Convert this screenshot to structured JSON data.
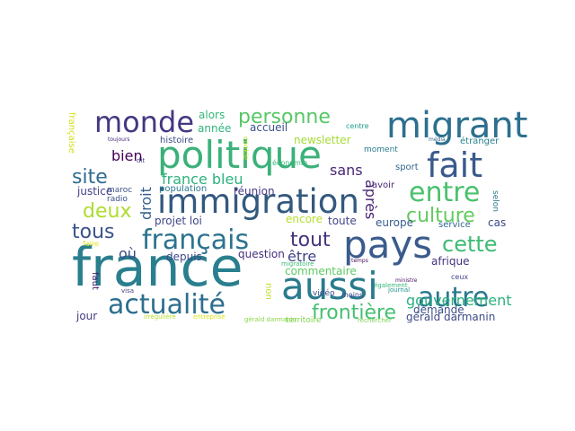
{
  "wordcloud": {
    "words": [
      {
        "text": "france",
        "color": "#2a7f8e"
      },
      {
        "text": "immigration",
        "color": "#33597f"
      },
      {
        "text": "politique",
        "color": "#3bb17a"
      },
      {
        "text": "migrant",
        "color": "#2d6f8e"
      },
      {
        "text": "pays",
        "color": "#3a5b8c"
      },
      {
        "text": "aussi",
        "color": "#2a7b8e"
      },
      {
        "text": "monde",
        "color": "#453781"
      },
      {
        "text": "fait",
        "color": "#3a5a8c"
      },
      {
        "text": "actualité",
        "color": "#2d6e8e"
      },
      {
        "text": "français",
        "color": "#2c738e"
      },
      {
        "text": "entre",
        "color": "#4ac16d"
      },
      {
        "text": "autre",
        "color": "#2a788e"
      },
      {
        "text": "personne",
        "color": "#57c766"
      },
      {
        "text": "cette",
        "color": "#3dbc74"
      },
      {
        "text": "tout",
        "color": "#46327e"
      },
      {
        "text": "culture",
        "color": "#62cb5f"
      },
      {
        "text": "frontière",
        "color": "#45bf70"
      },
      {
        "text": "site",
        "color": "#2f6c8e"
      },
      {
        "text": "deux",
        "color": "#addc30"
      },
      {
        "text": "tous",
        "color": "#3b528b"
      },
      {
        "text": "gouvernement",
        "color": "#2ab07f"
      },
      {
        "text": "france bleu",
        "color": "#2db27d"
      },
      {
        "text": "bien",
        "color": "#440154"
      },
      {
        "text": "droit",
        "color": "#35608d"
      },
      {
        "text": "sans",
        "color": "#482576"
      },
      {
        "text": "après",
        "color": "#482475"
      },
      {
        "text": "être",
        "color": "#424086"
      },
      {
        "text": "où",
        "color": "#3e4989"
      },
      {
        "text": "europe",
        "color": "#365c8d"
      },
      {
        "text": "afrique",
        "color": "#46327e"
      },
      {
        "text": "gérald darmanin",
        "color": "#3e4a89"
      },
      {
        "text": "commentaire",
        "color": "#5ec962"
      },
      {
        "text": "question",
        "color": "#46307e"
      },
      {
        "text": "projet loi",
        "color": "#3f4788"
      },
      {
        "text": "depuis",
        "color": "#3f4889"
      },
      {
        "text": "réunion",
        "color": "#443983"
      },
      {
        "text": "population",
        "color": "#2a788e"
      },
      {
        "text": "justice",
        "color": "#404387"
      },
      {
        "text": "newsletter",
        "color": "#a5db36"
      },
      {
        "text": "accueil",
        "color": "#3c4f8a"
      },
      {
        "text": "alors",
        "color": "#35b779"
      },
      {
        "text": "année",
        "color": "#2fb47c"
      },
      {
        "text": "histoire",
        "color": "#3e4c8a"
      },
      {
        "text": "encore",
        "color": "#b5de2b"
      },
      {
        "text": "toute",
        "color": "#404688"
      },
      {
        "text": "cas",
        "color": "#3e4989"
      },
      {
        "text": "service",
        "color": "#31668e"
      },
      {
        "text": "demande",
        "color": "#3b518b"
      },
      {
        "text": "jour",
        "color": "#433e85"
      },
      {
        "text": "faut",
        "color": "#481c6e"
      },
      {
        "text": "non",
        "color": "#bddf26"
      },
      {
        "text": "avoir",
        "color": "#482878"
      },
      {
        "text": "sport",
        "color": "#31688e"
      },
      {
        "text": "étranger",
        "color": "#25838e"
      },
      {
        "text": "selon",
        "color": "#2a778e"
      },
      {
        "text": "moment",
        "color": "#287c8e"
      },
      {
        "text": "française",
        "color": "#d2e21b"
      },
      {
        "text": "maroc",
        "color": "#3b528b"
      },
      {
        "text": "radio",
        "color": "#3b528b"
      },
      {
        "text": "vidéo",
        "color": "#3d4d8a"
      },
      {
        "text": "territoire",
        "color": "#81d34d"
      },
      {
        "text": "économie",
        "color": "#35b779"
      },
      {
        "text": "centre",
        "color": "#1fa088"
      },
      {
        "text": "cookie",
        "color": "#c2df23"
      },
      {
        "text": "moins",
        "color": "#404588"
      },
      {
        "text": "ceux",
        "color": "#414487"
      },
      {
        "text": "faire",
        "color": "#e5e419"
      },
      {
        "text": "visa",
        "color": "#424186"
      },
      {
        "text": "irrégulière",
        "color": "#b8de29"
      },
      {
        "text": "entreprise",
        "color": "#dde318"
      },
      {
        "text": "gérald darmanin",
        "color": "#8bd646"
      },
      {
        "text": "rechercher",
        "color": "#7ad151"
      },
      {
        "text": "également",
        "color": "#32b67a"
      },
      {
        "text": "journal",
        "color": "#21918c"
      },
      {
        "text": "migratoire",
        "color": "#3aba76"
      },
      {
        "text": "toujours",
        "color": "#482979"
      },
      {
        "text": "dit",
        "color": "#443a83"
      },
      {
        "text": "média",
        "color": "#32658e"
      },
      {
        "text": "ministre",
        "color": "#481467"
      },
      {
        "text": "temps",
        "color": "#471063"
      }
    ]
  }
}
